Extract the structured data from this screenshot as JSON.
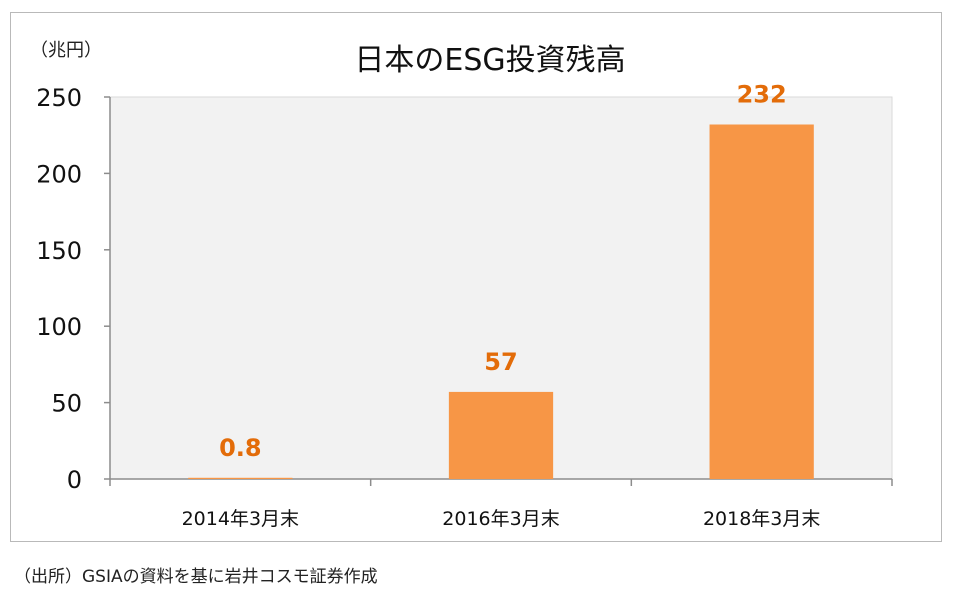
{
  "chart_data": {
    "type": "bar",
    "title": "日本のESG投資残高",
    "unit_label": "（兆円）",
    "categories": [
      "2014年3月末",
      "2016年3月末",
      "2018年3月末"
    ],
    "values": [
      0.8,
      57,
      232
    ],
    "value_labels": [
      "0.8",
      "57",
      "232"
    ],
    "ylim": [
      0,
      250
    ],
    "yticks": [
      "0",
      "50",
      "100",
      "150",
      "200",
      "250"
    ],
    "grid": false,
    "legend": "none",
    "colors": {
      "bar": "#f79646",
      "value_label": "#e36c09",
      "plot_bg": "#f2f2f2",
      "axis": "#8c8c8c"
    }
  },
  "source_note": "（出所）GSIAの資料を基に岩井コスモ証券作成"
}
